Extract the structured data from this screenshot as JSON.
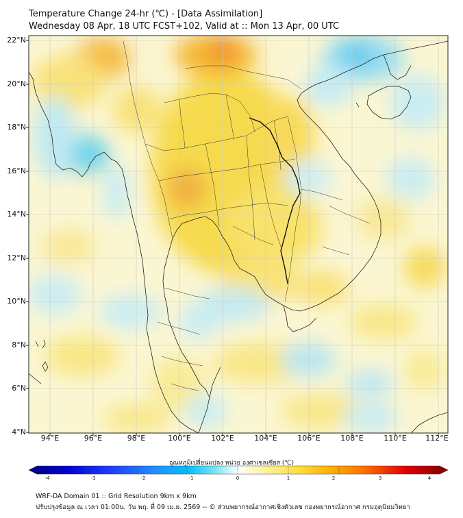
{
  "header": {
    "title": "Temperature Change 24-hr (℃) - [Data Assimilation]",
    "subtitle": "Wednesday 08 Apr, 18 UTC FCST+102, Valid at :: Mon 13 Apr, 00 UTC"
  },
  "map": {
    "lat_labels": [
      "22°N",
      "20°N",
      "18°N",
      "16°N",
      "14°N",
      "12°N",
      "10°N",
      "8°N",
      "6°N",
      "4°N"
    ],
    "lon_labels": [
      "94°E",
      "96°E",
      "98°E",
      "100°E",
      "102°E",
      "104°E",
      "106°E",
      "108°E",
      "110°E",
      "112°E"
    ]
  },
  "colorbar": {
    "title": "อุณหภูมิเปลี่ยนแปลง หน่วย องศาเซลเซียส (℃)",
    "ticks": [
      "-4",
      "-3",
      "-2",
      "-1",
      "0",
      "1",
      "2",
      "3",
      "4"
    ],
    "colors": [
      "#000080",
      "#0000cd",
      "#1e40ff",
      "#1e90ff",
      "#00bfff",
      "#87e8f5",
      "#ffffff",
      "#fff3a0",
      "#ffe040",
      "#ffb000",
      "#ff7000",
      "#e00000",
      "#7f0000"
    ]
  },
  "footer": {
    "line1": "WRF-DA Domain 01 :: Grid Resolution 9km x 9km",
    "line2": "ปรับปรุงข้อมูล ณ เวลา 01:00น. วัน พฤ. ที่ 09 เม.ย. 2569 -- © ส่วนพยากรณ์อากาศเชิงตัวเลข กองพยากรณ์อากาศ กรมอุตุนิยมวิทยา"
  }
}
